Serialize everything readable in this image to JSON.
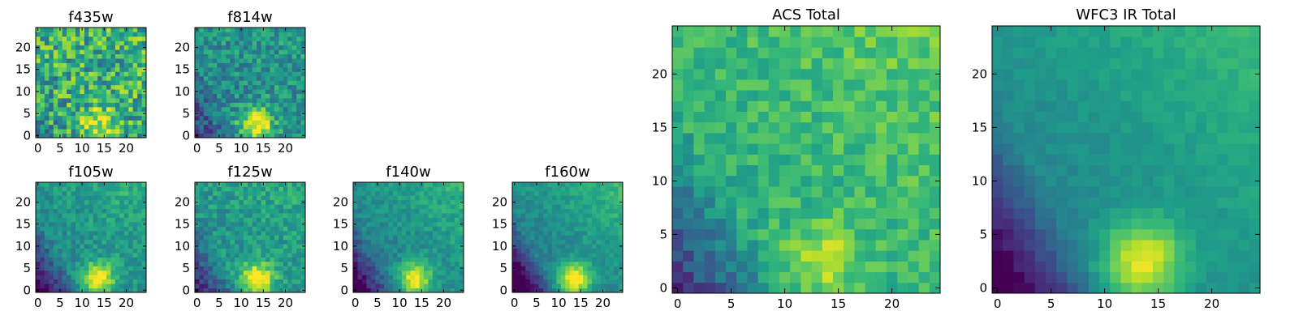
{
  "chart_data": [
    {
      "type": "heatmap",
      "title": "f435w",
      "xlabel": "",
      "ylabel": "",
      "xlim": [
        0,
        24
      ],
      "ylim": [
        0,
        24
      ],
      "xticks": [
        "0",
        "5",
        "10",
        "15",
        "20"
      ],
      "yticks": [
        "0",
        "5",
        "10",
        "15",
        "20"
      ],
      "colormap": "viridis",
      "grid": false
    },
    {
      "type": "heatmap",
      "title": "f814w",
      "xlabel": "",
      "ylabel": "",
      "xlim": [
        0,
        24
      ],
      "ylim": [
        0,
        24
      ],
      "xticks": [
        "0",
        "5",
        "10",
        "15",
        "20"
      ],
      "yticks": [
        "0",
        "5",
        "10",
        "15",
        "20"
      ],
      "colormap": "viridis",
      "grid": false
    },
    {
      "type": "heatmap",
      "title": "ACS Total",
      "xlabel": "",
      "ylabel": "",
      "xlim": [
        0,
        24
      ],
      "ylim": [
        0,
        24
      ],
      "xticks": [
        "0",
        "5",
        "10",
        "15",
        "20"
      ],
      "yticks": [
        "0",
        "5",
        "10",
        "15",
        "20"
      ],
      "colormap": "viridis",
      "grid": false
    },
    {
      "type": "heatmap",
      "title": "WFC3 IR Total",
      "xlabel": "",
      "ylabel": "",
      "xlim": [
        0,
        24
      ],
      "ylim": [
        0,
        24
      ],
      "xticks": [
        "0",
        "5",
        "10",
        "15",
        "20"
      ],
      "yticks": [
        "0",
        "5",
        "10",
        "15",
        "20"
      ],
      "colormap": "viridis",
      "grid": false
    },
    {
      "type": "heatmap",
      "title": "f105w",
      "xlabel": "",
      "ylabel": "",
      "xlim": [
        0,
        24
      ],
      "ylim": [
        0,
        24
      ],
      "xticks": [
        "0",
        "5",
        "10",
        "15",
        "20"
      ],
      "yticks": [
        "0",
        "5",
        "10",
        "15",
        "20"
      ],
      "colormap": "viridis",
      "grid": false
    },
    {
      "type": "heatmap",
      "title": "f125w",
      "xlabel": "",
      "ylabel": "",
      "xlim": [
        0,
        24
      ],
      "ylim": [
        0,
        24
      ],
      "xticks": [
        "0",
        "5",
        "10",
        "15",
        "20"
      ],
      "yticks": [
        "0",
        "5",
        "10",
        "15",
        "20"
      ],
      "colormap": "viridis",
      "grid": false
    },
    {
      "type": "heatmap",
      "title": "f140w",
      "xlabel": "",
      "ylabel": "",
      "xlim": [
        0,
        24
      ],
      "ylim": [
        0,
        24
      ],
      "xticks": [
        "0",
        "5",
        "10",
        "15",
        "20"
      ],
      "yticks": [
        "0",
        "5",
        "10",
        "15",
        "20"
      ],
      "colormap": "viridis",
      "grid": false
    },
    {
      "type": "heatmap",
      "title": "f160w",
      "xlabel": "",
      "ylabel": "",
      "xlim": [
        0,
        24
      ],
      "ylim": [
        0,
        24
      ],
      "xticks": [
        "0",
        "5",
        "10",
        "15",
        "20"
      ],
      "yticks": [
        "0",
        "5",
        "10",
        "15",
        "20"
      ],
      "colormap": "viridis",
      "grid": false
    }
  ]
}
